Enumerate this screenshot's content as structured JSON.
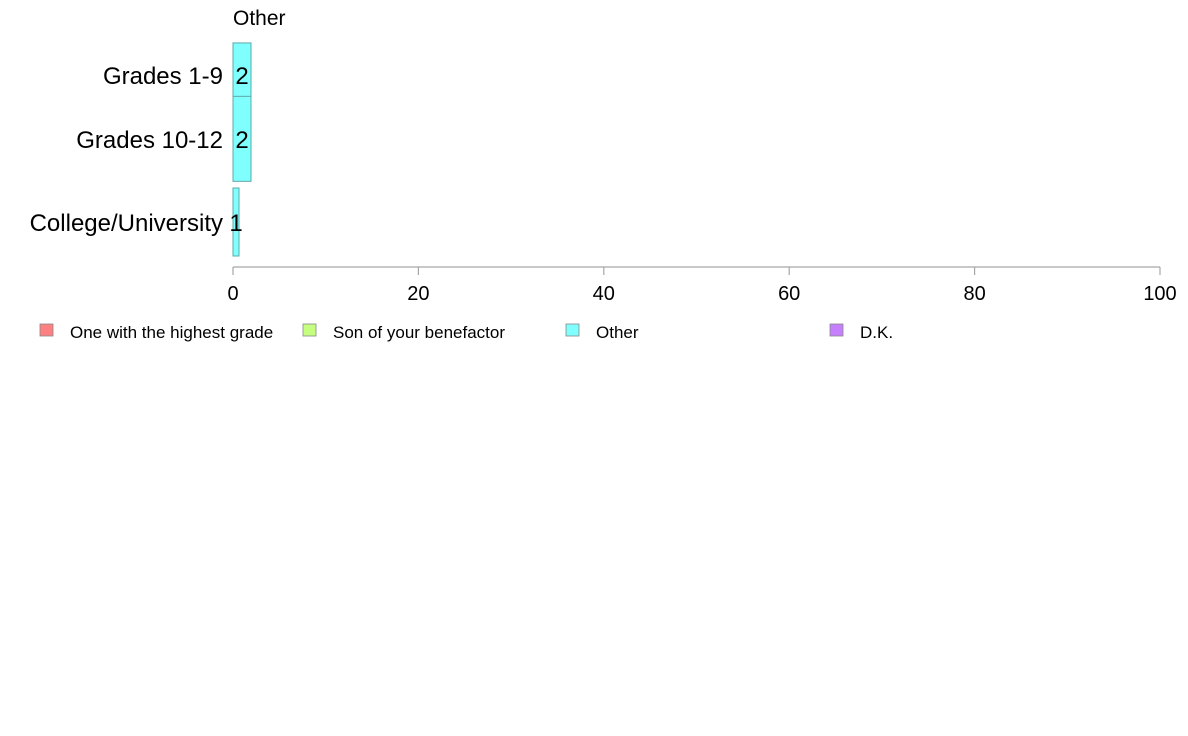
{
  "chart_data": {
    "type": "bar",
    "orientation": "horizontal",
    "panel_title": "Other",
    "categories": [
      "Grades 1-9",
      "Grades 10-12",
      "College/University"
    ],
    "series": [
      {
        "name": "Other",
        "values": [
          2,
          2,
          1
        ],
        "labels": [
          "2",
          "2",
          "1"
        ],
        "color": "#80FFFF"
      }
    ],
    "relative_bar_heights": [
      0.75,
      1.0,
      0.8
    ],
    "xlim": [
      0,
      100
    ],
    "x_ticks": [
      0,
      20,
      40,
      60,
      80,
      100
    ],
    "x_tick_labels": [
      "0",
      "20",
      "40",
      "60",
      "80",
      "100"
    ],
    "grid": false,
    "legend": {
      "placement": "bottom",
      "items": [
        {
          "label": "One with the highest grade",
          "color": "#FF8080"
        },
        {
          "label": "Son of your benefactor",
          "color": "#C6FF80"
        },
        {
          "label": "Other",
          "color": "#80FFFF"
        },
        {
          "label": "D.K.",
          "color": "#C680FF"
        }
      ]
    },
    "colors": {
      "axis": "#A6A6A6",
      "bar_stroke": "#5FA8A8"
    }
  }
}
